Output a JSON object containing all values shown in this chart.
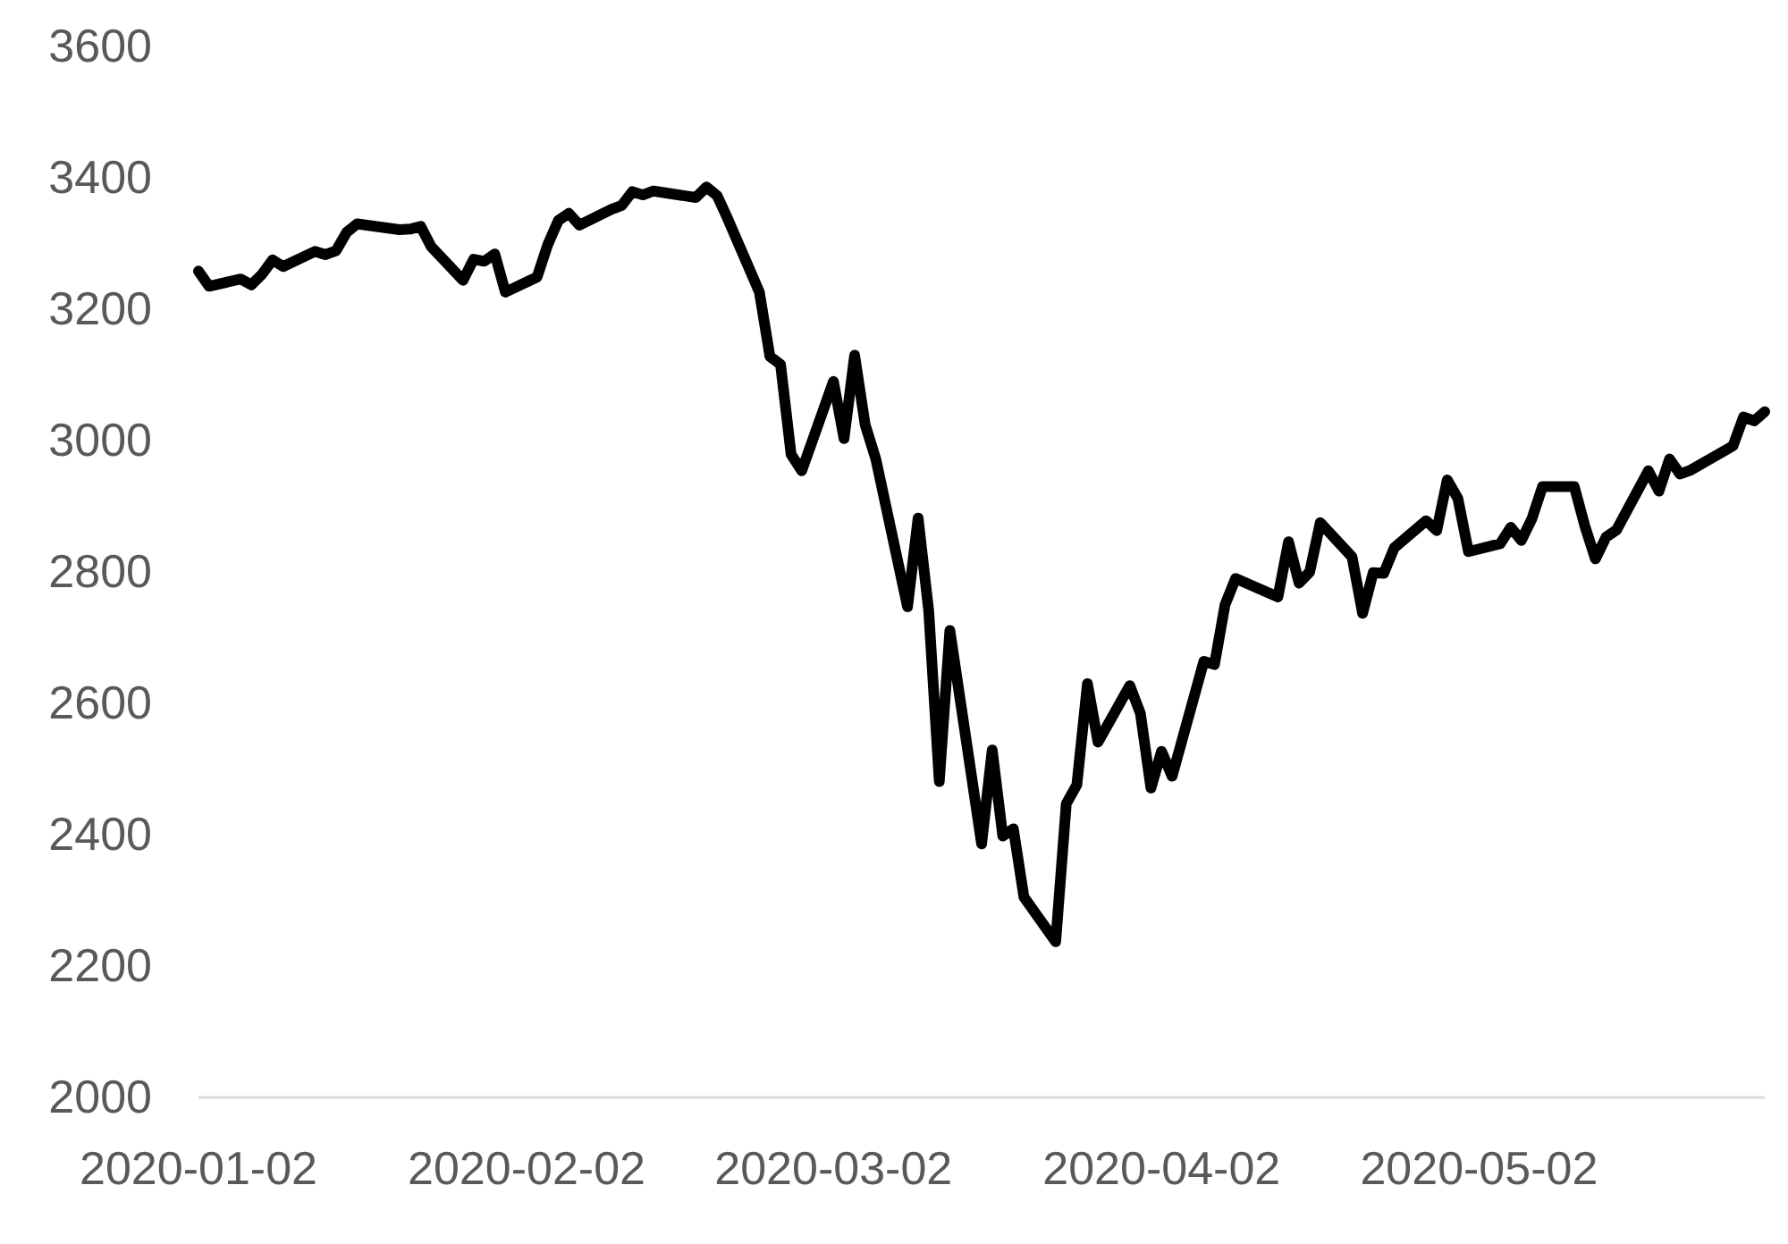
{
  "chart_data": {
    "type": "line",
    "x": [
      "2020-01-02",
      "2020-01-03",
      "2020-01-06",
      "2020-01-07",
      "2020-01-08",
      "2020-01-09",
      "2020-01-10",
      "2020-01-13",
      "2020-01-14",
      "2020-01-15",
      "2020-01-16",
      "2020-01-17",
      "2020-01-21",
      "2020-01-22",
      "2020-01-23",
      "2020-01-24",
      "2020-01-27",
      "2020-01-28",
      "2020-01-29",
      "2020-01-30",
      "2020-01-31",
      "2020-02-03",
      "2020-02-04",
      "2020-02-05",
      "2020-02-06",
      "2020-02-07",
      "2020-02-10",
      "2020-02-11",
      "2020-02-12",
      "2020-02-13",
      "2020-02-14",
      "2020-02-18",
      "2020-02-19",
      "2020-02-20",
      "2020-02-21",
      "2020-02-24",
      "2020-02-25",
      "2020-02-26",
      "2020-02-27",
      "2020-02-28",
      "2020-03-02",
      "2020-03-03",
      "2020-03-04",
      "2020-03-05",
      "2020-03-06",
      "2020-03-09",
      "2020-03-10",
      "2020-03-11",
      "2020-03-12",
      "2020-03-13",
      "2020-03-16",
      "2020-03-17",
      "2020-03-18",
      "2020-03-19",
      "2020-03-20",
      "2020-03-23",
      "2020-03-24",
      "2020-03-25",
      "2020-03-26",
      "2020-03-27",
      "2020-03-30",
      "2020-03-31",
      "2020-04-01",
      "2020-04-02",
      "2020-04-03",
      "2020-04-06",
      "2020-04-07",
      "2020-04-08",
      "2020-04-09",
      "2020-04-13",
      "2020-04-14",
      "2020-04-15",
      "2020-04-16",
      "2020-04-17",
      "2020-04-20",
      "2020-04-21",
      "2020-04-22",
      "2020-04-23",
      "2020-04-24",
      "2020-04-27",
      "2020-04-28",
      "2020-04-29",
      "2020-04-30",
      "2020-05-01",
      "2020-05-04",
      "2020-05-05",
      "2020-05-06",
      "2020-05-07",
      "2020-05-08",
      "2020-05-11",
      "2020-05-12",
      "2020-05-13",
      "2020-05-14",
      "2020-05-15",
      "2020-05-18",
      "2020-05-19",
      "2020-05-20",
      "2020-05-21",
      "2020-05-22",
      "2020-05-26",
      "2020-05-27",
      "2020-05-28",
      "2020-05-29"
    ],
    "series": [
      {
        "color": "#000000",
        "values": [
          3258,
          3235,
          3246,
          3237,
          3253,
          3275,
          3265,
          3288,
          3283,
          3289,
          3317,
          3330,
          3321,
          3322,
          3326,
          3295,
          3244,
          3276,
          3273,
          3284,
          3226,
          3249,
          3298,
          3335,
          3346,
          3328,
          3352,
          3358,
          3379,
          3374,
          3380,
          3370,
          3386,
          3373,
          3338,
          3226,
          3128,
          3116,
          2979,
          2954,
          3090,
          3003,
          3130,
          3024,
          2972,
          2747,
          2882,
          2741,
          2481,
          2711,
          2386,
          2529,
          2398,
          2409,
          2305,
          2237,
          2447,
          2476,
          2630,
          2541,
          2627,
          2585,
          2471,
          2527,
          2489,
          2664,
          2659,
          2750,
          2790,
          2762,
          2846,
          2783,
          2800,
          2875,
          2823,
          2737,
          2799,
          2798,
          2837,
          2878,
          2863,
          2940,
          2912,
          2831,
          2843,
          2868,
          2848,
          2881,
          2930,
          2930,
          2870,
          2820,
          2853,
          2864,
          2954,
          2923,
          2972,
          2949,
          2955,
          2992,
          3036,
          3030,
          3044
        ]
      }
    ],
    "xlim": [
      "2020-01-02",
      "2020-05-29"
    ],
    "xticks": [
      "2020-01-02",
      "2020-02-02",
      "2020-03-02",
      "2020-04-02",
      "2020-05-02"
    ],
    "ylim": [
      2000,
      3600
    ],
    "yticks": [
      2000,
      2200,
      2400,
      2600,
      2800,
      3000,
      3200,
      3400,
      3600
    ]
  }
}
